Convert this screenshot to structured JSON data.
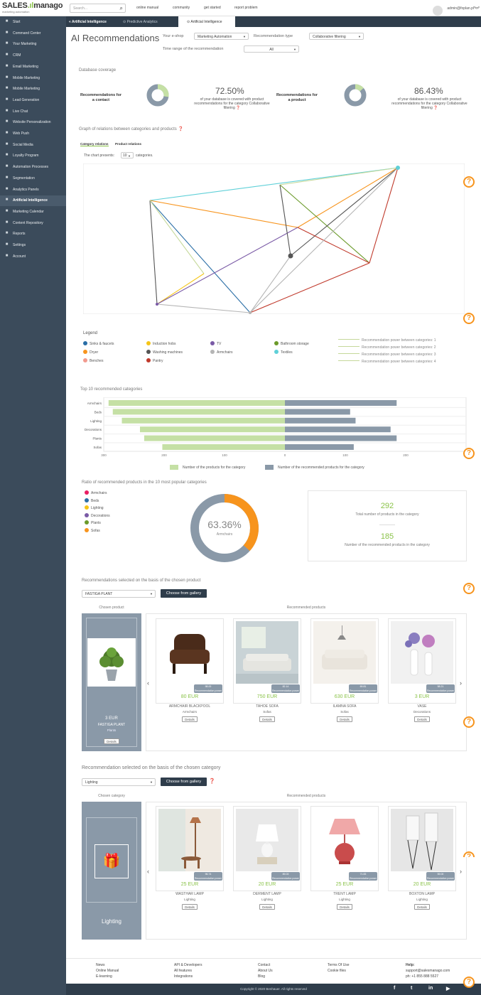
{
  "brand": {
    "name_a": "SALES",
    "name_b": "manago",
    "tagline": "marketing automation"
  },
  "search": {
    "placeholder": "Search..."
  },
  "toplinks": [
    "online manual",
    "community",
    "get started",
    "report problem"
  ],
  "user": {
    "email": "admin@foplan.pl"
  },
  "sidebar": {
    "items": [
      {
        "label": "Start",
        "icon": "home-icon"
      },
      {
        "label": "Command Center",
        "icon": "monitor-icon"
      },
      {
        "label": "Your Marketing",
        "icon": "eye-icon"
      },
      {
        "label": "CRM",
        "icon": "folder-icon"
      },
      {
        "label": "Email Marketing",
        "icon": "at-icon"
      },
      {
        "label": "Mobile Marketing",
        "icon": "mobile-icon"
      },
      {
        "label": "Mobile Marketing",
        "icon": "phone-icon"
      },
      {
        "label": "Lead Generation",
        "icon": "users-icon"
      },
      {
        "label": "Live Chat",
        "icon": "chat-icon"
      },
      {
        "label": "Website Personalization",
        "icon": "window-icon"
      },
      {
        "label": "Web Push",
        "icon": "bell-icon"
      },
      {
        "label": "Social Media",
        "icon": "share-icon"
      },
      {
        "label": "Loyalty Program",
        "icon": "star-icon"
      },
      {
        "label": "Automation Processes",
        "icon": "gears-icon"
      },
      {
        "label": "Segmentation",
        "icon": "grid-icon"
      },
      {
        "label": "Analytics Panels",
        "icon": "chart-icon"
      },
      {
        "label": "Artificial Intelligence",
        "icon": "brain-icon",
        "active": true
      },
      {
        "label": "Marketing Calendar",
        "icon": "calendar-icon"
      },
      {
        "label": "Content Repository",
        "icon": "files-icon"
      },
      {
        "label": "Reports",
        "icon": "report-icon"
      },
      {
        "label": "Settings",
        "icon": "wrench-icon"
      },
      {
        "label": "Account",
        "icon": "list-icon"
      }
    ]
  },
  "tabs": {
    "section": "Artificial Intelligence",
    "items": [
      "Predictive Analytics",
      "Artificial Intelligence"
    ]
  },
  "header": {
    "title": "AI Recommendations",
    "eshop_label": "Your e-shop",
    "eshop_value": "Marketing Automation",
    "rtype_label": "Recommendation type",
    "rtype_value": "Collaborative filtering",
    "range_label": "Time range of the recommendation",
    "range_value": "All"
  },
  "coverage": {
    "title": "Database coverage",
    "contact": {
      "label": "Recommendations for a contact",
      "pct": "72.50%",
      "pct_value": 72.5,
      "desc": "of your database is covered with product recommendations for the category Collaborative filtering"
    },
    "product": {
      "label": "Recommendations for a product",
      "pct": "86.43%",
      "pct_value": 86.43,
      "desc": "of your database is covered with product recommendations for the category Collaborative filtering"
    }
  },
  "graph": {
    "title": "Graph of relations between categories and products",
    "tab1": "Category relations",
    "tab2": "Product relations",
    "presents_a": "The chart presents:",
    "presents_value": "10",
    "presents_b": "categories."
  },
  "legend": {
    "title": "Legend",
    "items": [
      {
        "label": "Sinks & faucets",
        "color": "#2a6ea6"
      },
      {
        "label": "Induction hobs",
        "color": "#f5c518"
      },
      {
        "label": "TV",
        "color": "#7a5aa6"
      },
      {
        "label": "Bathroom storage",
        "color": "#6b9a2a"
      },
      {
        "label": "Dryer",
        "color": "#f7941d"
      },
      {
        "label": "Washing machines",
        "color": "#555555"
      },
      {
        "label": "Armchairs",
        "color": "#b5b5b5"
      },
      {
        "label": "Textiles",
        "color": "#5fd0d8"
      },
      {
        "label": "Benches",
        "color": "#f29a8e"
      },
      {
        "label": "Pantry",
        "color": "#c0392b"
      }
    ],
    "power": [
      "Recommendation power between categories: 1",
      "Recommendation power between categories: 2",
      "Recommendation power between categories: 3",
      "Recommendation power between categories: 4"
    ]
  },
  "chart_data": [
    {
      "type": "bar",
      "title": "Top 10 recommended categories",
      "categories": [
        "Armchairs",
        "Beds",
        "Lighting",
        "Decorations",
        "Plants",
        "Sofas"
      ],
      "series": [
        {
          "name": "Number of the products for the category",
          "values": [
            292,
            285,
            270,
            240,
            233,
            203
          ],
          "color": "#c5e0a5"
        },
        {
          "name": "Number of the recommended products for the category",
          "values": [
            185,
            108,
            117,
            175,
            185,
            114
          ],
          "color": "#8a99a8"
        }
      ],
      "tick_labels": [
        "300",
        "200",
        "100",
        "0",
        "100",
        "200",
        "300"
      ],
      "xlim": [
        -300,
        300
      ]
    },
    {
      "type": "pie",
      "title": "Ratio of recommended products in the 10 most popular categories",
      "center_value": "63.36%",
      "center_label": "Armchairs",
      "slices": [
        {
          "label": "Recommended",
          "value": 63.36,
          "color": "#8a99a8"
        },
        {
          "label": "Other",
          "value": 36.64,
          "color": "#f7941d"
        }
      ],
      "legend": [
        {
          "label": "Armchairs",
          "color": "#e91e63"
        },
        {
          "label": "Beds",
          "color": "#2a6ea6"
        },
        {
          "label": "Lighting",
          "color": "#f5c518"
        },
        {
          "label": "Decorations",
          "color": "#7a5aa6"
        },
        {
          "label": "Plants",
          "color": "#6b9a2a"
        },
        {
          "label": "Sofas",
          "color": "#f7941d"
        }
      ]
    }
  ],
  "stats": {
    "total_value": "292",
    "total_label": "Total number of products in the category",
    "recommended_value": "185",
    "recommended_label": "Number of the recommended products in the category"
  },
  "product_section": {
    "title": "Recommendations selected on the basis of the chosen product",
    "select_value": "FASTIGA PLANT",
    "gallery_btn": "Choose from gallery",
    "chosen_label": "Chosen product",
    "recommended_label": "Recommended products",
    "chosen": {
      "price": "3 EUR",
      "name": "FASTIGA PLANT",
      "category": "Plants",
      "details": "Details"
    },
    "items": [
      {
        "power": "98.00",
        "power_label": "Recommendation power",
        "price": "80 EUR",
        "name": "ARMCHAIR BLACKPOOL",
        "category": "Armchairs",
        "details": "Details"
      },
      {
        "power": "82.14",
        "power_label": "Recommendation power",
        "price": "750 EUR",
        "name": "TAHOE SOFA",
        "category": "Sofas",
        "details": "Details"
      },
      {
        "power": "69.81",
        "power_label": "Recommendation power",
        "price": "630 EUR",
        "name": "ILAMNA SOFA",
        "category": "Sofas",
        "details": "Details"
      },
      {
        "power": "58.21",
        "power_label": "Recommendation power",
        "price": "3 EUR",
        "name": "VASE",
        "category": "Decorations",
        "details": "Details"
      }
    ]
  },
  "category_section": {
    "title": "Recommendation selected on the basis of the chosen category",
    "select_value": "Lighting",
    "gallery_btn": "Choose from gallery",
    "chosen_label": "Chosen category",
    "recommended_label": "Recommended products",
    "chosen_name": "Lighting",
    "items": [
      {
        "power": "96.74",
        "power_label": "Recommendation power",
        "price": "25 EUR",
        "name": "WASTHAR LAMP",
        "category": "Lighting",
        "details": "Details"
      },
      {
        "power": "89.03",
        "power_label": "Recommendation power",
        "price": "20 EUR",
        "name": "DERMENT LAMP",
        "category": "Lighting",
        "details": "Details"
      },
      {
        "power": "71.83",
        "power_label": "Recommendation power",
        "price": "25 EUR",
        "name": "TRENT LAMP",
        "category": "Lighting",
        "details": "Details"
      },
      {
        "power": "59.00",
        "power_label": "Recommendation power",
        "price": "20 EUR",
        "name": "BOXTON LAMP",
        "category": "Lighting",
        "details": "Details"
      }
    ]
  },
  "footer": {
    "col1": [
      "News",
      "Online Manual",
      "E-learning"
    ],
    "col2": [
      "API & Developers",
      "All features",
      "Integrations"
    ],
    "col3": [
      "Contact",
      "About Us",
      "Blog"
    ],
    "col4": [
      "Terms Of Use",
      "Cookie files"
    ],
    "help_title": "Help:",
    "help_email": "support@salesmanago.com",
    "help_phone": "ph: +1 855 888 5527",
    "copyright": "Copyright © 2020 Benhauer. All rights reserved",
    "social": [
      "f",
      "t",
      "in",
      "yt"
    ]
  },
  "colors": {
    "sidebar": "#3b4b5b",
    "accent": "#8bc34a",
    "help": "#f7941d",
    "gray": "#8a99a8"
  }
}
